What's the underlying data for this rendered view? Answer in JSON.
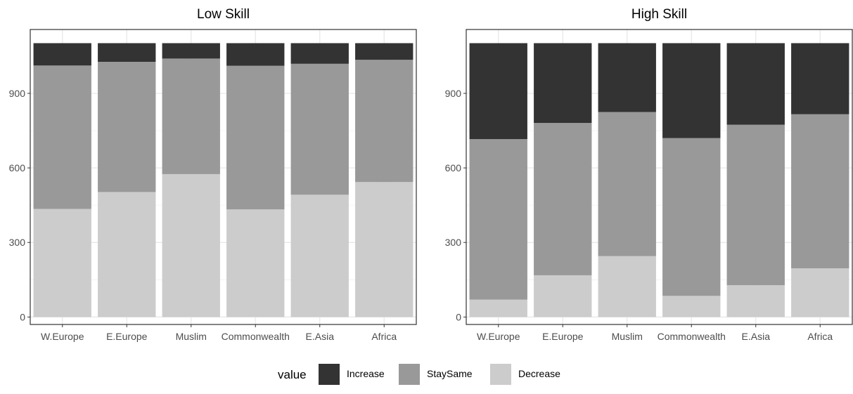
{
  "chart_data": [
    {
      "type": "bar",
      "stacked": true,
      "title": "Low Skill",
      "categories": [
        "W.Europe",
        "E.Europe",
        "Muslim",
        "Commonwealth",
        "E.Asia",
        "Africa"
      ],
      "series": [
        {
          "name": "Decrease",
          "color": "#cccccc",
          "values": [
            435,
            503,
            575,
            433,
            492,
            543
          ]
        },
        {
          "name": "StaySame",
          "color": "#999999",
          "values": [
            577,
            524,
            465,
            578,
            527,
            492
          ]
        },
        {
          "name": "Increase",
          "color": "#333333",
          "values": [
            90,
            75,
            62,
            91,
            83,
            67
          ]
        }
      ],
      "yticks": [
        0,
        300,
        600,
        900
      ],
      "ylim": [
        -30,
        1157
      ],
      "grid": true
    },
    {
      "type": "bar",
      "stacked": true,
      "title": "High Skill",
      "categories": [
        "W.Europe",
        "E.Europe",
        "Muslim",
        "Commonwealth",
        "E.Asia",
        "Africa"
      ],
      "series": [
        {
          "name": "Decrease",
          "color": "#cccccc",
          "values": [
            70,
            168,
            245,
            85,
            128,
            196
          ]
        },
        {
          "name": "StaySame",
          "color": "#999999",
          "values": [
            646,
            613,
            580,
            635,
            646,
            620
          ]
        },
        {
          "name": "Increase",
          "color": "#333333",
          "values": [
            386,
            321,
            277,
            382,
            328,
            286
          ]
        }
      ],
      "yticks": [
        0,
        300,
        600,
        900
      ],
      "ylim": [
        -30,
        1157
      ],
      "grid": true
    }
  ],
  "legend": {
    "title": "value",
    "position": "bottom",
    "items": [
      {
        "label": "Increase",
        "color": "#333333"
      },
      {
        "label": "StaySame",
        "color": "#999999"
      },
      {
        "label": "Decrease",
        "color": "#cccccc"
      }
    ]
  }
}
